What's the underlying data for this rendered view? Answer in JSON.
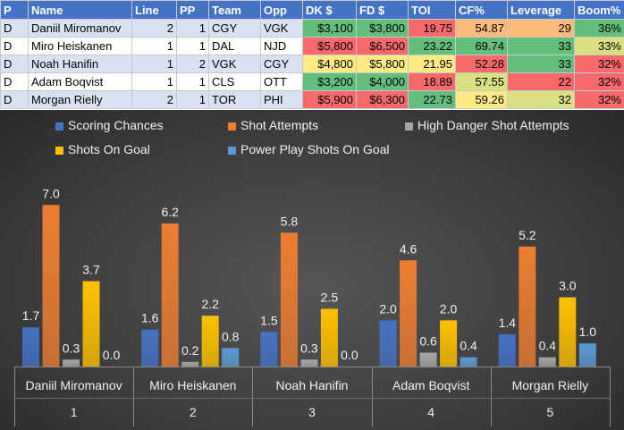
{
  "table": {
    "headers": [
      "P",
      "Name",
      "Line",
      "PP",
      "Team",
      "Opp",
      "DK $",
      "FD $",
      "TOI",
      "CF%",
      "Leverage",
      "Boom%"
    ],
    "rows": [
      [
        "D",
        "Daniil Miromanov",
        "2",
        "1",
        "CGY",
        "VGK",
        "$3,100",
        "$3,800",
        "19.75",
        "54.87",
        "29",
        "36%"
      ],
      [
        "D",
        "Miro Heiskanen",
        "1",
        "1",
        "DAL",
        "NJD",
        "$5,800",
        "$6,500",
        "23.22",
        "69.74",
        "33",
        "33%"
      ],
      [
        "D",
        "Noah Hanifin",
        "1",
        "2",
        "VGK",
        "CGY",
        "$4,800",
        "$5,800",
        "21.95",
        "52.28",
        "33",
        "32%"
      ],
      [
        "D",
        "Adam Boqvist",
        "1",
        "1",
        "CLS",
        "OTT",
        "$3,200",
        "$4,000",
        "18.89",
        "57.55",
        "22",
        "32%"
      ],
      [
        "D",
        "Morgan Rielly",
        "2",
        "1",
        "TOR",
        "PHI",
        "$5,900",
        "$6,300",
        "22.73",
        "59.26",
        "32",
        "32%"
      ]
    ],
    "cell_colors": {
      "dk": [
        "#63be7b",
        "#f8696b",
        "#ffeb84",
        "#63be7b",
        "#f8696b"
      ],
      "fd": [
        "#63be7b",
        "#f8696b",
        "#ffeb84",
        "#63be7b",
        "#f8696b"
      ],
      "toi": [
        "#f8696b",
        "#63be7b",
        "#ffeb84",
        "#f8696b",
        "#63be7b"
      ],
      "cf": [
        "#fbbc7b",
        "#63be7b",
        "#f8696b",
        "#d8e082",
        "#ffeb84"
      ],
      "leverage": [
        "#fbbc7b",
        "#63be7b",
        "#63be7b",
        "#f8696b",
        "#d8e082"
      ],
      "boom": [
        "#63be7b",
        "#d8e082",
        "#f8696b",
        "#f8696b",
        "#f8696b"
      ]
    }
  },
  "chart_data": {
    "type": "bar",
    "categories": [
      "Daniil Miromanov",
      "Miro Heiskanen",
      "Noah Hanifin",
      "Adam Boqvist",
      "Morgan Rielly"
    ],
    "category_index": [
      "1",
      "2",
      "3",
      "4",
      "5"
    ],
    "series": [
      {
        "name": "Scoring Chances",
        "color": "#4472c4",
        "values": [
          1.7,
          1.6,
          1.5,
          2.0,
          1.4
        ]
      },
      {
        "name": "Shot Attempts",
        "color": "#ed7d31",
        "values": [
          7.0,
          6.2,
          5.8,
          4.6,
          5.2
        ]
      },
      {
        "name": "High Danger Shot Attempts",
        "color": "#a5a5a5",
        "values": [
          0.3,
          0.2,
          0.3,
          0.6,
          0.4
        ]
      },
      {
        "name": "Shots On Goal",
        "color": "#ffc000",
        "values": [
          3.7,
          2.2,
          2.5,
          2.0,
          3.0
        ]
      },
      {
        "name": "Power Play Shots On Goal",
        "color": "#5b9bd5",
        "values": [
          0.0,
          0.8,
          0.0,
          0.4,
          1.0
        ]
      }
    ],
    "value_labels": [
      [
        "1.7",
        "1.6",
        "1.5",
        "2.0",
        "1.4"
      ],
      [
        "7.0",
        "6.2",
        "5.8",
        "4.6",
        "5.2"
      ],
      [
        "0.3",
        "0.2",
        "0.3",
        "0.6",
        "0.4"
      ],
      [
        "3.7",
        "2.2",
        "2.5",
        "2.0",
        "3.0"
      ],
      [
        "0.0",
        "0.8",
        "0.0",
        "0.4",
        "1.0"
      ]
    ],
    "ylim": [
      0,
      7.4
    ],
    "legend_position": "top",
    "title": "",
    "xlabel": "",
    "ylabel": ""
  }
}
